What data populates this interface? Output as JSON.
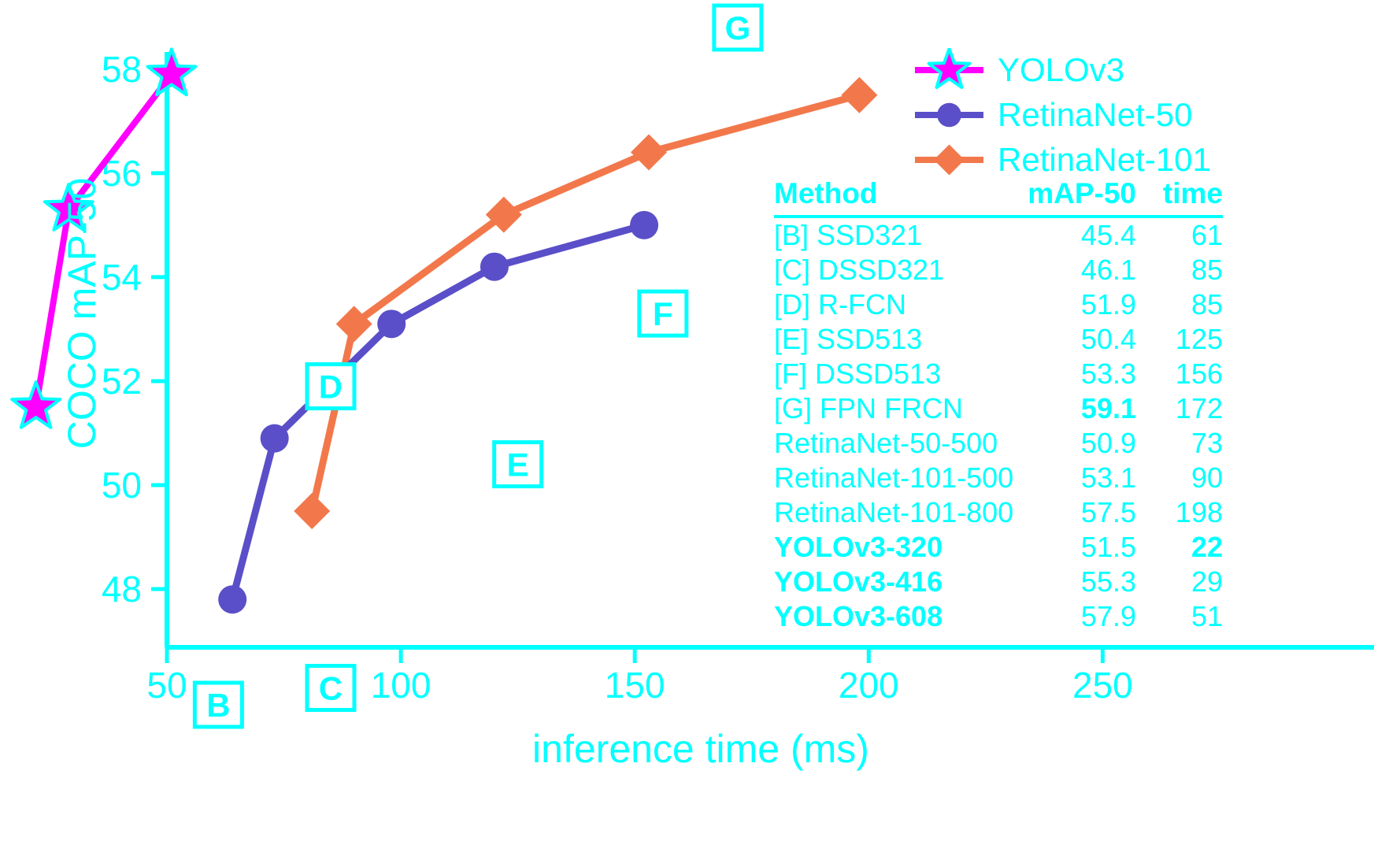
{
  "figure": {
    "background": "#ffffff",
    "accent": "#00ffff"
  },
  "chart_data": {
    "type": "line",
    "title": "",
    "xlabel": "inference time (ms)",
    "ylabel": "COCO mAP-50",
    "x_ticks": [
      50,
      100,
      150,
      200,
      250
    ],
    "y_ticks": [
      48,
      50,
      52,
      54,
      56,
      58
    ],
    "x_range": [
      50,
      308
    ],
    "y_range": [
      46.88,
      58.33
    ],
    "grid": false,
    "legend_position": "upper-right",
    "series": [
      {
        "name": "YOLOv3",
        "color": "#ff00ff",
        "marker": "star",
        "marker_edge": "#00ffff",
        "line_width": 8,
        "points": [
          [
            22,
            51.5
          ],
          [
            29,
            55.3
          ],
          [
            51,
            57.9
          ]
        ]
      },
      {
        "name": "RetinaNet-50",
        "color": "#5a4fc8",
        "marker": "circle",
        "line_width": 9,
        "points": [
          [
            64,
            47.8
          ],
          [
            73,
            50.9
          ],
          [
            98,
            53.1
          ],
          [
            120,
            54.2
          ],
          [
            152,
            55.0
          ]
        ]
      },
      {
        "name": "RetinaNet-101",
        "color": "#f2784b",
        "marker": "diamond",
        "line_width": 9,
        "points": [
          [
            81,
            49.5
          ],
          [
            90,
            53.1
          ],
          [
            122,
            55.2
          ],
          [
            153,
            56.4
          ],
          [
            198,
            57.5
          ]
        ]
      }
    ],
    "annotations": [
      {
        "label": "B",
        "x": 61,
        "y": 45.4
      },
      {
        "label": "C",
        "x": 85,
        "y": 46.1
      },
      {
        "label": "D",
        "x": 85,
        "y": 51.9
      },
      {
        "label": "E",
        "x": 125,
        "y": 50.4
      },
      {
        "label": "F",
        "x": 156,
        "y": 53.3
      },
      {
        "label": "G",
        "x": 172,
        "y": 59.1
      }
    ]
  },
  "legend": {
    "items": [
      {
        "label": "YOLOv3"
      },
      {
        "label": "RetinaNet-50"
      },
      {
        "label": "RetinaNet-101"
      }
    ]
  },
  "table": {
    "headers": {
      "method": "Method",
      "map": "mAP-50",
      "time": "time"
    },
    "rows": [
      {
        "method": "[B] SSD321",
        "map": "45.4",
        "time": "61"
      },
      {
        "method": "[C] DSSD321",
        "map": "46.1",
        "time": "85"
      },
      {
        "method": "[D] R-FCN",
        "map": "51.9",
        "time": "85"
      },
      {
        "method": "[E] SSD513",
        "map": "50.4",
        "time": "125"
      },
      {
        "method": "[F] DSSD513",
        "map": "53.3",
        "time": "156"
      },
      {
        "method": "[G] FPN FRCN",
        "map": "59.1",
        "time": "172"
      },
      {
        "method": "RetinaNet-50-500",
        "map": "50.9",
        "time": "73"
      },
      {
        "method": "RetinaNet-101-500",
        "map": "53.1",
        "time": "90"
      },
      {
        "method": "RetinaNet-101-800",
        "map": "57.5",
        "time": "198"
      },
      {
        "method": "YOLOv3-320",
        "map": "51.5",
        "time": "22"
      },
      {
        "method": "YOLOv3-416",
        "map": "55.3",
        "time": "29"
      },
      {
        "method": "YOLOv3-608",
        "map": "57.9",
        "time": "51"
      }
    ]
  }
}
